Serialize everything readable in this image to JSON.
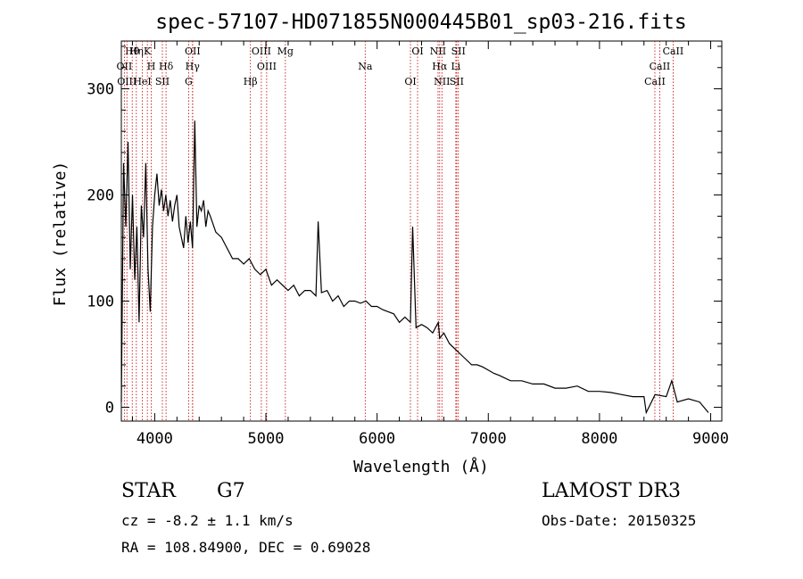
{
  "chart_data": {
    "type": "line",
    "title": "spec-57107-HD071855N000445B01_sp03-216.fits",
    "xlabel": "Wavelength (Å)",
    "ylabel": "Flux (relative)",
    "xlim": [
      3700,
      9100
    ],
    "ylim": [
      -13,
      345
    ],
    "xticks": [
      4000,
      5000,
      6000,
      7000,
      8000,
      9000
    ],
    "xtick_labels": [
      "4000",
      "5000",
      "6000",
      "7000",
      "8000",
      "9000"
    ],
    "yticks": [
      0,
      100,
      200,
      300
    ],
    "ytick_labels": [
      "0",
      "100",
      "200",
      "300"
    ],
    "grid": false,
    "line_color": "#000000",
    "marker_color": "#c00000",
    "series": [
      {
        "name": "flux",
        "x": [
          3700,
          3720,
          3740,
          3760,
          3780,
          3800,
          3820,
          3840,
          3860,
          3880,
          3900,
          3920,
          3940,
          3960,
          3980,
          4000,
          4020,
          4040,
          4060,
          4080,
          4100,
          4120,
          4140,
          4160,
          4180,
          4200,
          4220,
          4240,
          4260,
          4280,
          4300,
          4320,
          4340,
          4360,
          4380,
          4400,
          4420,
          4440,
          4460,
          4480,
          4500,
          4550,
          4600,
          4650,
          4700,
          4750,
          4800,
          4850,
          4900,
          4950,
          5000,
          5050,
          5100,
          5150,
          5200,
          5250,
          5300,
          5350,
          5400,
          5450,
          5470,
          5500,
          5550,
          5600,
          5650,
          5700,
          5750,
          5800,
          5850,
          5900,
          5950,
          6000,
          6050,
          6100,
          6150,
          6200,
          6250,
          6300,
          6320,
          6350,
          6400,
          6450,
          6500,
          6550,
          6563,
          6600,
          6650,
          6700,
          6750,
          6800,
          6850,
          6900,
          6950,
          7000,
          7050,
          7100,
          7200,
          7300,
          7400,
          7500,
          7600,
          7700,
          7800,
          7900,
          8000,
          8100,
          8200,
          8300,
          8400,
          8420,
          8500,
          8600,
          8650,
          8700,
          8800,
          8900,
          8980
        ],
        "values": [
          5,
          230,
          170,
          250,
          130,
          200,
          120,
          170,
          80,
          190,
          160,
          230,
          130,
          90,
          170,
          200,
          220,
          190,
          205,
          185,
          200,
          180,
          195,
          175,
          190,
          200,
          170,
          160,
          150,
          180,
          155,
          175,
          150,
          270,
          170,
          190,
          185,
          195,
          170,
          185,
          180,
          165,
          160,
          150,
          140,
          140,
          135,
          140,
          130,
          125,
          130,
          115,
          120,
          115,
          110,
          115,
          105,
          110,
          110,
          105,
          175,
          108,
          110,
          100,
          105,
          95,
          100,
          100,
          98,
          100,
          95,
          95,
          92,
          90,
          88,
          80,
          85,
          80,
          170,
          75,
          78,
          75,
          70,
          80,
          65,
          70,
          60,
          55,
          50,
          45,
          40,
          40,
          38,
          35,
          32,
          30,
          25,
          25,
          22,
          22,
          18,
          18,
          20,
          15,
          15,
          14,
          12,
          10,
          10,
          -5,
          12,
          10,
          25,
          5,
          8,
          5,
          -5
        ]
      }
    ],
    "markers": [
      {
        "name": "Hθ",
        "wavelength": 3798
      },
      {
        "name": "OII",
        "wavelength": 3727
      },
      {
        "name": "OIII",
        "wavelength": 3750
      },
      {
        "name": "K",
        "wavelength": 3934
      },
      {
        "name": "H",
        "wavelength": 3969
      },
      {
        "name": "HeI",
        "wavelength": 3889
      },
      {
        "name": "Hη",
        "wavelength": 3835
      },
      {
        "name": "Hδ",
        "wavelength": 4102
      },
      {
        "name": "SII",
        "wavelength": 4069
      },
      {
        "name": "OII",
        "wavelength": 4341
      },
      {
        "name": "Hγ",
        "wavelength": 4340
      },
      {
        "name": "G",
        "wavelength": 4305
      },
      {
        "name": "OIII",
        "wavelength": 4959
      },
      {
        "name": "OIII",
        "wavelength": 5007
      },
      {
        "name": "Hβ",
        "wavelength": 4861
      },
      {
        "name": "Mg",
        "wavelength": 5175
      },
      {
        "name": "Na",
        "wavelength": 5893
      },
      {
        "name": "OI",
        "wavelength": 6300
      },
      {
        "name": "OI",
        "wavelength": 6364
      },
      {
        "name": "Hα",
        "wavelength": 6563
      },
      {
        "name": "SII",
        "wavelength": 6716
      },
      {
        "name": "NII",
        "wavelength": 6548
      },
      {
        "name": "Li",
        "wavelength": 6708
      },
      {
        "name": "NII",
        "wavelength": 6583
      },
      {
        "name": "SII",
        "wavelength": 6731
      },
      {
        "name": "CaII",
        "wavelength": 8542
      },
      {
        "name": "CaII",
        "wavelength": 8498
      },
      {
        "name": "CaII",
        "wavelength": 8662
      }
    ]
  },
  "info": {
    "class_label": "STAR",
    "subclass": "G7",
    "survey": "LAMOST DR3",
    "cz": "cz = -8.2 ± 1.1 km/s",
    "obs_date": "Obs-Date: 20150325",
    "ra_dec": "RA = 108.84900, DEC =   0.69028"
  }
}
